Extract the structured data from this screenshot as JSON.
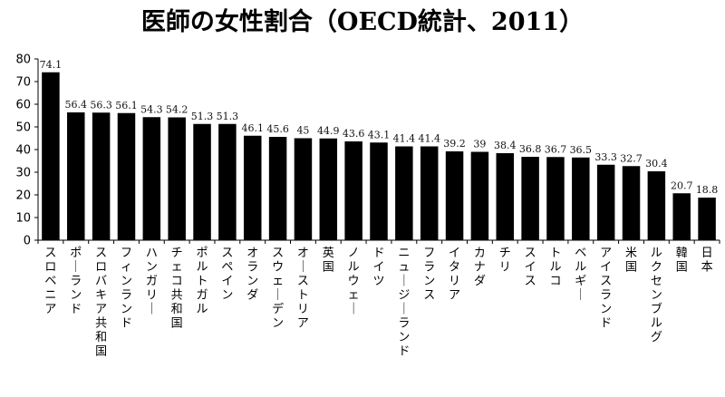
{
  "chart_data": {
    "type": "bar",
    "title": "医師の女性割合（OECD統計、2011）",
    "xlabel": "",
    "ylabel": "",
    "ylim": [
      0,
      80
    ],
    "yticks": [
      0,
      10,
      20,
      30,
      40,
      50,
      60,
      70,
      80
    ],
    "grid": false,
    "bar_color": "#000000",
    "categories": [
      "スロベニア",
      "ポーランド",
      "スロバキア共和国",
      "フィンランド",
      "ハンガリー",
      "チェコ共和国",
      "ポルトガル",
      "スペイン",
      "オランダ",
      "スウェーデン",
      "オーストリア",
      "英国",
      "ノルウェー",
      "ドイツ",
      "ニュージーランド",
      "フランス",
      "イタリア",
      "カナダ",
      "チリ",
      "スイス",
      "トルコ",
      "ベルギー",
      "アイスランド",
      "米国",
      "ルクセンブルグ",
      "韓国",
      "日本"
    ],
    "values": [
      74.1,
      56.4,
      56.3,
      56.1,
      54.3,
      54.2,
      51.3,
      51.3,
      46.1,
      45.6,
      45,
      44.9,
      43.6,
      43.1,
      41.4,
      41.4,
      39.2,
      39,
      38.4,
      36.8,
      36.7,
      36.5,
      33.3,
      32.7,
      30.4,
      20.7,
      18.8
    ]
  }
}
